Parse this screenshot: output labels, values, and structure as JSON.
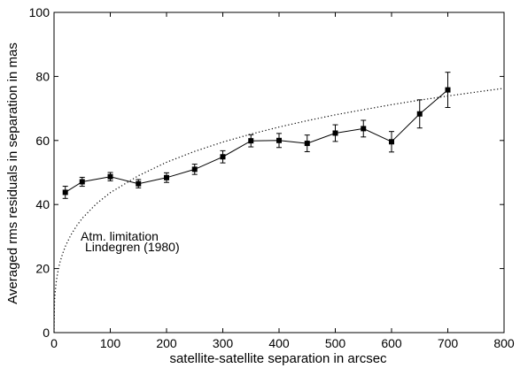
{
  "chart_data": {
    "type": "scatter",
    "title": "",
    "xlabel": "satellite-satellite separation in arcsec",
    "ylabel": "Averaged rms residuals in separation in mas",
    "xlim": [
      0,
      800
    ],
    "ylim": [
      0,
      100
    ],
    "xticks": [
      0,
      100,
      200,
      300,
      400,
      500,
      600,
      700,
      800
    ],
    "yticks": [
      0,
      20,
      40,
      60,
      80,
      100
    ],
    "grid": false,
    "colors": {
      "data": "#000000",
      "curve": "#000000",
      "frame": "#000000"
    },
    "series": [
      {
        "style": "line-markers-errorbars",
        "marker": "filled-square",
        "x": [
          20,
          50,
          100,
          150,
          200,
          250,
          300,
          350,
          400,
          450,
          500,
          550,
          600,
          650,
          700
        ],
        "y": [
          43.8,
          47.1,
          48.7,
          46.5,
          48.4,
          51.0,
          54.9,
          59.9,
          60.0,
          59.1,
          62.3,
          63.7,
          59.6,
          68.3,
          75.8
        ],
        "err_low": [
          1.9,
          1.4,
          1.3,
          1.3,
          1.5,
          1.6,
          1.9,
          1.9,
          2.2,
          2.6,
          2.6,
          2.6,
          3.2,
          4.4,
          5.5
        ],
        "err_high": [
          1.9,
          1.4,
          1.3,
          1.3,
          1.5,
          1.6,
          1.9,
          1.9,
          2.2,
          2.6,
          2.6,
          2.6,
          3.2,
          4.4,
          5.5
        ]
      },
      {
        "style": "dotted-line",
        "x": [
          0,
          1,
          2,
          4,
          6,
          8,
          10,
          15,
          20,
          30,
          40,
          50,
          75,
          100,
          150,
          200,
          250,
          300,
          350,
          400,
          450,
          500,
          550,
          600,
          650,
          700,
          750,
          800
        ],
        "y": [
          0,
          10.1,
          12.6,
          15.9,
          18.2,
          20.0,
          21.6,
          24.5,
          26.9,
          30.5,
          33.3,
          35.7,
          40.2,
          43.7,
          49.0,
          53.2,
          56.6,
          59.5,
          62.0,
          64.2,
          66.2,
          68.0,
          69.6,
          71.2,
          72.6,
          73.9,
          75.1,
          76.3
        ]
      }
    ],
    "annotations": [
      "Atm. limitation",
      "Lindegren (1980)"
    ]
  }
}
